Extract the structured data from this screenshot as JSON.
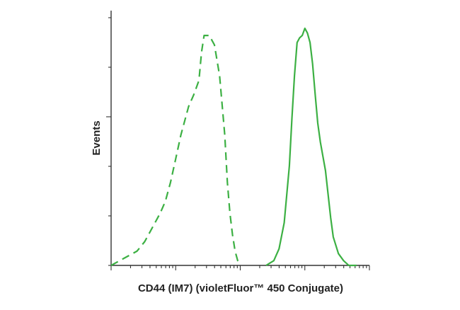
{
  "chart_data": {
    "type": "line",
    "title": "",
    "xlabel": "CD44 (IM7) (violetFluor™ 450 Conjugate)",
    "ylabel": "Events",
    "xscale": "log",
    "xlim": [
      0.0,
      1.0
    ],
    "ylim": [
      0.0,
      1.0
    ],
    "grid": false,
    "legend": "none",
    "series": [
      {
        "style": "dashed",
        "color": "#3cb043",
        "x": [
          0.0,
          0.05,
          0.1,
          0.13,
          0.16,
          0.19,
          0.21,
          0.23,
          0.25,
          0.27,
          0.3,
          0.32,
          0.34,
          0.35,
          0.36,
          0.38,
          0.4,
          0.42,
          0.44,
          0.45,
          0.46,
          0.47,
          0.48,
          0.49,
          0.5
        ],
        "y": [
          0.0,
          0.03,
          0.06,
          0.1,
          0.16,
          0.22,
          0.27,
          0.35,
          0.45,
          0.55,
          0.67,
          0.72,
          0.78,
          0.9,
          0.97,
          0.97,
          0.93,
          0.8,
          0.55,
          0.35,
          0.22,
          0.13,
          0.06,
          0.02,
          0.0
        ]
      },
      {
        "style": "solid",
        "color": "#3cb043",
        "x": [
          0.6,
          0.63,
          0.65,
          0.67,
          0.69,
          0.7,
          0.71,
          0.72,
          0.73,
          0.74,
          0.75,
          0.76,
          0.77,
          0.78,
          0.79,
          0.8,
          0.81,
          0.82,
          0.83,
          0.84,
          0.85,
          0.86,
          0.88,
          0.9,
          0.92,
          0.95
        ],
        "y": [
          0.0,
          0.02,
          0.07,
          0.18,
          0.42,
          0.62,
          0.8,
          0.94,
          0.96,
          0.97,
          1.0,
          0.98,
          0.94,
          0.85,
          0.72,
          0.6,
          0.52,
          0.46,
          0.4,
          0.3,
          0.2,
          0.12,
          0.05,
          0.02,
          0.0,
          0.0
        ]
      }
    ]
  }
}
